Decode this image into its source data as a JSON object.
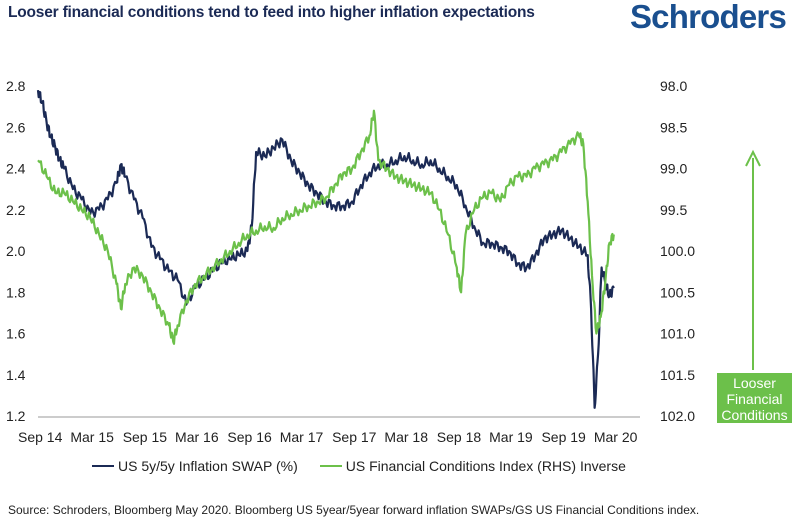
{
  "header": {
    "title": "Looser financial conditions tend to feed into higher inflation expectations",
    "brand": "Schroders"
  },
  "chart_data": {
    "type": "line",
    "x_tick_labels": [
      "Sep 14",
      "Mar 15",
      "Sep 15",
      "Mar 16",
      "Sep 16",
      "Mar 17",
      "Sep 17",
      "Mar 18",
      "Sep 18",
      "Mar 19",
      "Sep 19",
      "Mar 20"
    ],
    "x_range": [
      0,
      69
    ],
    "y_left": {
      "range": [
        1.2,
        2.8
      ],
      "ticks": [
        "1.2",
        "1.4",
        "1.6",
        "1.8",
        "2.0",
        "2.2",
        "2.4",
        "2.6",
        "2.8"
      ]
    },
    "y_right": {
      "range": [
        98.0,
        102.0
      ],
      "inverted": true,
      "ticks": [
        "98.0",
        "98.5",
        "99.0",
        "99.5",
        "100.0",
        "100.5",
        "101.0",
        "101.5",
        "102.0"
      ]
    },
    "series": [
      {
        "name": "US 5y/5y Inflation SWAP (%)",
        "axis": "left",
        "color": "#1b2a55",
        "points": [
          [
            0,
            2.78
          ],
          [
            0.5,
            2.72
          ],
          [
            1,
            2.62
          ],
          [
            1.5,
            2.55
          ],
          [
            2,
            2.5
          ],
          [
            2.5,
            2.44
          ],
          [
            3,
            2.4
          ],
          [
            4,
            2.3
          ],
          [
            5,
            2.25
          ],
          [
            6,
            2.18
          ],
          [
            7,
            2.2
          ],
          [
            8,
            2.25
          ],
          [
            9,
            2.33
          ],
          [
            9.5,
            2.42
          ],
          [
            10,
            2.36
          ],
          [
            11,
            2.25
          ],
          [
            12,
            2.16
          ],
          [
            13,
            2.02
          ],
          [
            14,
            1.96
          ],
          [
            15,
            1.9
          ],
          [
            16,
            1.86
          ],
          [
            17,
            1.74
          ],
          [
            18,
            1.82
          ],
          [
            19,
            1.86
          ],
          [
            20,
            1.9
          ],
          [
            21,
            1.94
          ],
          [
            22,
            1.96
          ],
          [
            23,
            1.98
          ],
          [
            24,
            2.0
          ],
          [
            24.5,
            2.12
          ],
          [
            25,
            2.48
          ],
          [
            26,
            2.46
          ],
          [
            27,
            2.5
          ],
          [
            28,
            2.54
          ],
          [
            29,
            2.44
          ],
          [
            30,
            2.38
          ],
          [
            31,
            2.32
          ],
          [
            32,
            2.28
          ],
          [
            33,
            2.24
          ],
          [
            34,
            2.22
          ],
          [
            35,
            2.22
          ],
          [
            36,
            2.24
          ],
          [
            37,
            2.32
          ],
          [
            38,
            2.38
          ],
          [
            39,
            2.42
          ],
          [
            40,
            2.42
          ],
          [
            41,
            2.44
          ],
          [
            42,
            2.46
          ],
          [
            43,
            2.44
          ],
          [
            44,
            2.42
          ],
          [
            45,
            2.44
          ],
          [
            46,
            2.4
          ],
          [
            47,
            2.36
          ],
          [
            48,
            2.32
          ],
          [
            49,
            2.22
          ],
          [
            50,
            2.12
          ],
          [
            51,
            2.04
          ],
          [
            52,
            2.04
          ],
          [
            53,
            2.02
          ],
          [
            54,
            2.0
          ],
          [
            55,
            1.94
          ],
          [
            56,
            1.92
          ],
          [
            57,
            1.98
          ],
          [
            58,
            2.06
          ],
          [
            59,
            2.08
          ],
          [
            60,
            2.1
          ],
          [
            61,
            2.06
          ],
          [
            62,
            2.02
          ],
          [
            63,
            1.98
          ],
          [
            63.4,
            1.72
          ],
          [
            63.8,
            1.24
          ],
          [
            64.2,
            1.5
          ],
          [
            64.6,
            1.92
          ],
          [
            65,
            1.85
          ],
          [
            65.5,
            1.78
          ],
          [
            66,
            1.82
          ]
        ]
      },
      {
        "name": "US Financial Conditions Index (RHS) Inverse",
        "axis": "right",
        "color": "#6cc04a",
        "points": [
          [
            0,
            98.9
          ],
          [
            1,
            99.1
          ],
          [
            2,
            99.3
          ],
          [
            3,
            99.3
          ],
          [
            4,
            99.4
          ],
          [
            5,
            99.5
          ],
          [
            6,
            99.6
          ],
          [
            7,
            99.8
          ],
          [
            8,
            100.0
          ],
          [
            9,
            100.4
          ],
          [
            9.5,
            100.7
          ],
          [
            10,
            100.4
          ],
          [
            11,
            100.2
          ],
          [
            12,
            100.3
          ],
          [
            13,
            100.5
          ],
          [
            14,
            100.7
          ],
          [
            15,
            100.9
          ],
          [
            15.5,
            101.1
          ],
          [
            16,
            100.9
          ],
          [
            17,
            100.6
          ],
          [
            18,
            100.4
          ],
          [
            19,
            100.3
          ],
          [
            20,
            100.2
          ],
          [
            21,
            100.1
          ],
          [
            22,
            100.0
          ],
          [
            23,
            99.9
          ],
          [
            24,
            99.8
          ],
          [
            25,
            99.75
          ],
          [
            26,
            99.7
          ],
          [
            27,
            99.72
          ],
          [
            28,
            99.6
          ],
          [
            29,
            99.55
          ],
          [
            30,
            99.5
          ],
          [
            31,
            99.45
          ],
          [
            32,
            99.4
          ],
          [
            33,
            99.35
          ],
          [
            34,
            99.2
          ],
          [
            35,
            99.05
          ],
          [
            36,
            99.0
          ],
          [
            37,
            98.8
          ],
          [
            38,
            98.6
          ],
          [
            38.5,
            98.3
          ],
          [
            39,
            98.9
          ],
          [
            40,
            99.0
          ],
          [
            41,
            99.1
          ],
          [
            42,
            99.15
          ],
          [
            43,
            99.2
          ],
          [
            44,
            99.25
          ],
          [
            45,
            99.3
          ],
          [
            46,
            99.5
          ],
          [
            47,
            99.8
          ],
          [
            48,
            100.2
          ],
          [
            48.5,
            100.5
          ],
          [
            49,
            99.8
          ],
          [
            50,
            99.5
          ],
          [
            51,
            99.35
          ],
          [
            52,
            99.3
          ],
          [
            53,
            99.4
          ],
          [
            54,
            99.2
          ],
          [
            55,
            99.1
          ],
          [
            56,
            99.1
          ],
          [
            57,
            99.0
          ],
          [
            58,
            98.95
          ],
          [
            59,
            98.9
          ],
          [
            60,
            98.8
          ],
          [
            61,
            98.7
          ],
          [
            62,
            98.6
          ],
          [
            62.5,
            98.7
          ],
          [
            63,
            99.4
          ],
          [
            63.5,
            100.3
          ],
          [
            64,
            101.0
          ],
          [
            64.5,
            100.8
          ],
          [
            65,
            100.4
          ],
          [
            65.5,
            99.9
          ],
          [
            66,
            99.8
          ]
        ]
      }
    ]
  },
  "callout": {
    "label": "Looser Financial Conditions",
    "arrow_color": "#6cc04a"
  },
  "footer": {
    "source": "Source: Schroders, Bloomberg May 2020. Bloomberg US 5year/5year forward inflation SWAPs/GS US Financial Conditions index."
  }
}
